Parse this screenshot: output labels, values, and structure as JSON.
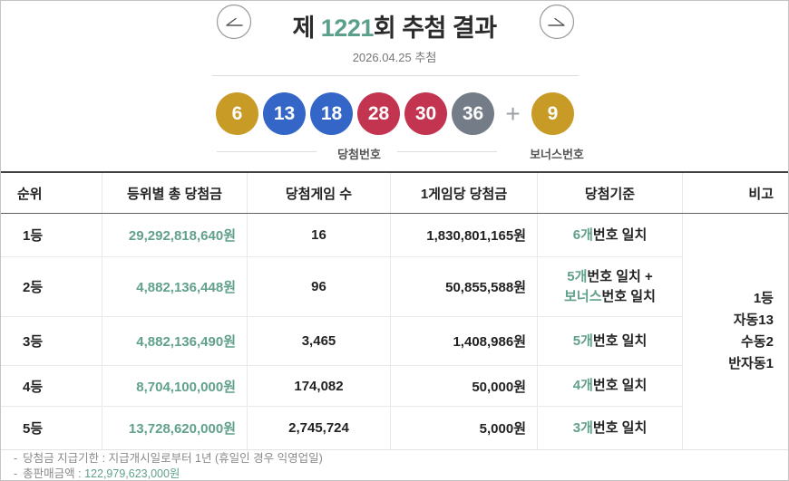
{
  "header": {
    "title_prefix": "제 ",
    "round_number": "1221",
    "title_suffix": "회 추첨 결과",
    "draw_date": "2026.04.25 추첨",
    "prev_arrow_icon": "arrow-left",
    "next_arrow_icon": "arrow-right"
  },
  "balls": {
    "winning": [
      {
        "num": "6",
        "color": "#C89B27"
      },
      {
        "num": "13",
        "color": "#3366C6"
      },
      {
        "num": "18",
        "color": "#3366C6"
      },
      {
        "num": "28",
        "color": "#C2344F"
      },
      {
        "num": "30",
        "color": "#C2344F"
      },
      {
        "num": "36",
        "color": "#747C87"
      }
    ],
    "plus": "+",
    "bonus": {
      "num": "9",
      "color": "#C89B27"
    },
    "winning_label": "당첨번호",
    "bonus_label": "보너스번호"
  },
  "table": {
    "headers": [
      "순위",
      "등위별 총 당첨금",
      "당첨게임 수",
      "1게임당 당첨금",
      "당첨기준",
      "비고"
    ],
    "rows": [
      {
        "rank": "1등",
        "total": "29,292,818,640원",
        "games": "16",
        "per_game": "1,830,801,165원",
        "criteria": [
          [
            {
              "t": "6개",
              "g": true
            },
            {
              "t": "번호 일치",
              "g": false
            }
          ]
        ]
      },
      {
        "rank": "2등",
        "total": "4,882,136,448원",
        "games": "96",
        "per_game": "50,855,588원",
        "criteria": [
          [
            {
              "t": "5개",
              "g": true
            },
            {
              "t": "번호 일치 +",
              "g": false
            }
          ],
          [
            {
              "t": "보너스",
              "g": true
            },
            {
              "t": "번호 일치",
              "g": false
            }
          ]
        ]
      },
      {
        "rank": "3등",
        "total": "4,882,136,490원",
        "games": "3,465",
        "per_game": "1,408,986원",
        "criteria": [
          [
            {
              "t": "5개",
              "g": true
            },
            {
              "t": "번호 일치",
              "g": false
            }
          ]
        ]
      },
      {
        "rank": "4등",
        "total": "8,704,100,000원",
        "games": "174,082",
        "per_game": "50,000원",
        "criteria": [
          [
            {
              "t": "4개",
              "g": true
            },
            {
              "t": "번호 일치",
              "g": false
            }
          ]
        ]
      },
      {
        "rank": "5등",
        "total": "13,728,620,000원",
        "games": "2,745,724",
        "per_game": "5,000원",
        "criteria": [
          [
            {
              "t": "3개",
              "g": true
            },
            {
              "t": "번호 일치",
              "g": false
            }
          ]
        ]
      }
    ],
    "note_lines": [
      "1등",
      "자동13",
      "수동2",
      "반자동1"
    ]
  },
  "footer": {
    "notes": [
      {
        "bullet": "-",
        "text": "당첨금 지급기한 : 지급개시일로부터 1년 (휴일인 경우 익영업일)",
        "value": ""
      },
      {
        "bullet": "-",
        "text": "총판매금액 : ",
        "value": "122,979,623,000원"
      }
    ]
  },
  "colors": {
    "accent_green": "#61A18C",
    "title_green": "#5AA08C",
    "ball_gold": "#C89B27",
    "ball_blue": "#3366C6",
    "ball_red": "#C2344F",
    "ball_gray": "#747C87"
  }
}
